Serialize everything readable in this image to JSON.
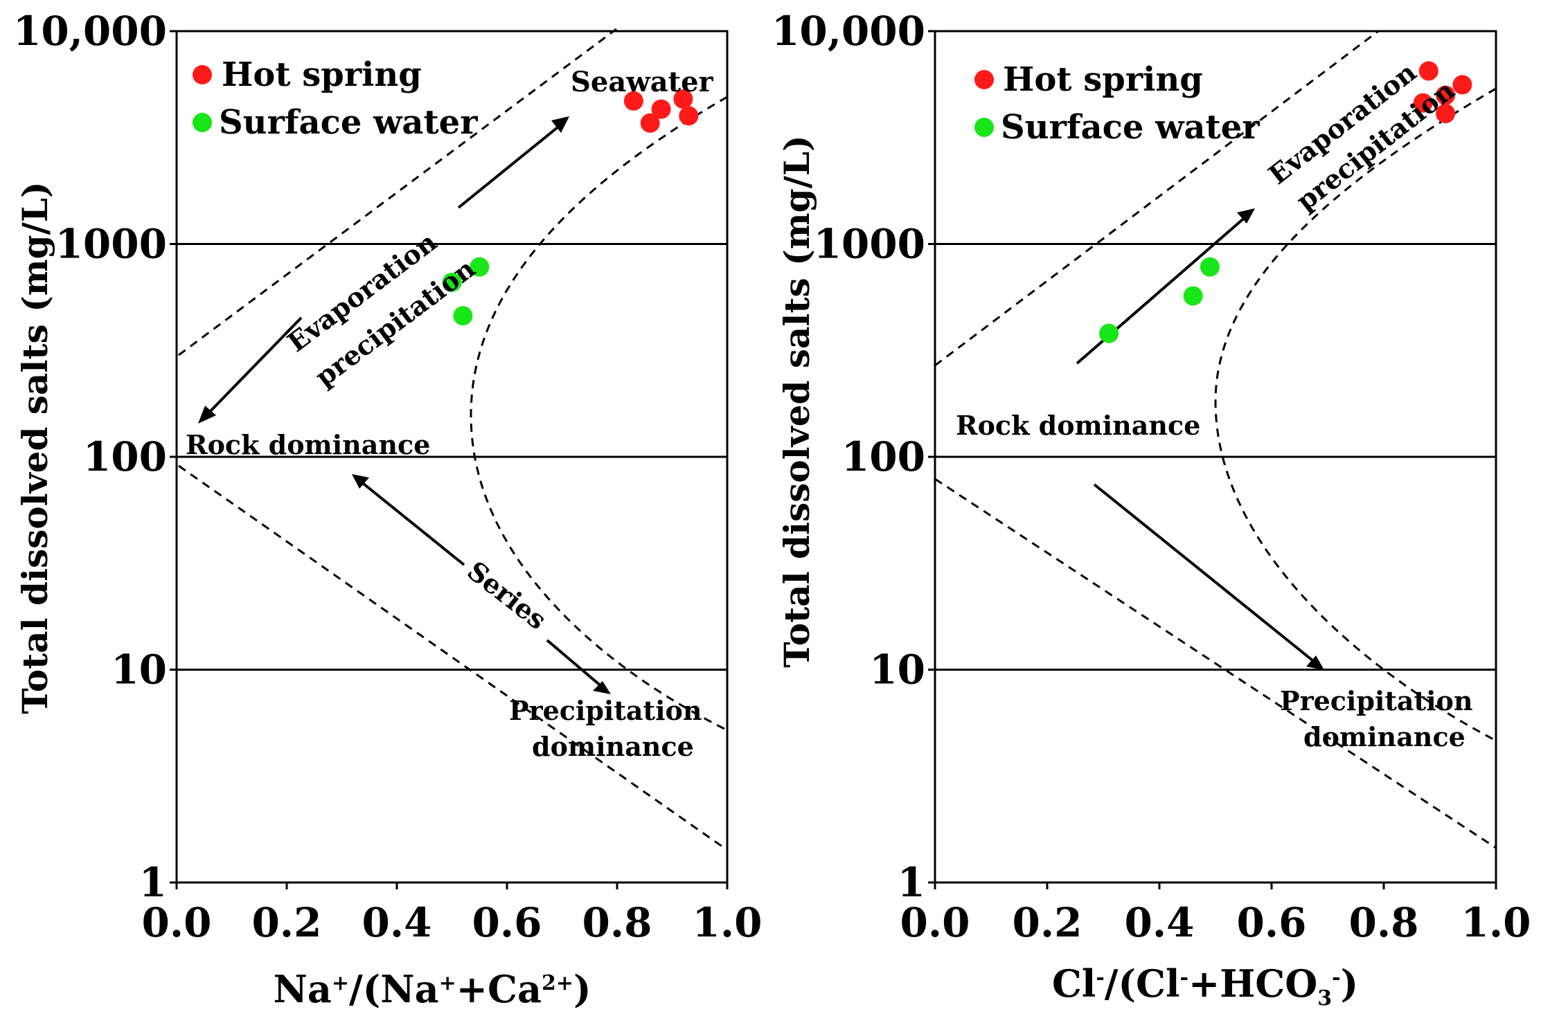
{
  "legend": {
    "hot_spring": "Hot spring",
    "surface_water": "Surface water"
  },
  "colors": {
    "hot_spring": "#ff1a1a",
    "surface_water": "#19e619"
  },
  "chart_data": [
    {
      "type": "scatter",
      "xlabel": "Na⁺/(Na⁺+Ca²⁺)",
      "ylabel": "Total dissolved salts (mg/L)",
      "xlim": [
        0,
        1
      ],
      "ylim": [
        1,
        10000
      ],
      "yscale": "log",
      "x_ticks": [
        "0.0",
        "0.2",
        "0.4",
        "0.6",
        "0.8",
        "1.0"
      ],
      "y_ticks": [
        "1",
        "10",
        "100",
        "1000",
        "10,000"
      ],
      "horizontal_lines": [
        10,
        100,
        1000
      ],
      "legend_position": "top-left",
      "annotations": {
        "seawater": "Seawater",
        "evaporation": "Evaporation",
        "precipitation": "precipitation",
        "rock": "Rock  dominance",
        "series": "Series",
        "precip_dom_1": "Precipitation",
        "precip_dom_2": "dominance"
      },
      "series": [
        {
          "name": "Hot spring",
          "points": [
            {
              "x": 0.83,
              "y": 4700
            },
            {
              "x": 0.86,
              "y": 3700
            },
            {
              "x": 0.88,
              "y": 4300
            },
            {
              "x": 0.92,
              "y": 4800
            },
            {
              "x": 0.93,
              "y": 4000
            }
          ]
        },
        {
          "name": "Surface water",
          "points": [
            {
              "x": 0.5,
              "y": 660
            },
            {
              "x": 0.55,
              "y": 780
            },
            {
              "x": 0.52,
              "y": 460
            }
          ]
        }
      ]
    },
    {
      "type": "scatter",
      "xlabel": "Cl⁻/(Cl⁻+HCO₃⁻)",
      "ylabel": "Total dissolved salts (mg/L)",
      "xlim": [
        0,
        1
      ],
      "ylim": [
        1,
        10000
      ],
      "yscale": "log",
      "x_ticks": [
        "0.0",
        "0.2",
        "0.4",
        "0.6",
        "0.8",
        "1.0"
      ],
      "y_ticks": [
        "1",
        "10",
        "100",
        "1000",
        "10,000"
      ],
      "horizontal_lines": [
        10,
        100,
        1000
      ],
      "legend_position": "top-left",
      "annotations": {
        "evaporation": "Evaporation",
        "precipitation": "precipitation",
        "rock": "Rock  dominance",
        "precip_dom_1": "Precipitation",
        "precip_dom_2": "dominance"
      },
      "series": [
        {
          "name": "Hot spring",
          "points": [
            {
              "x": 0.88,
              "y": 6500
            },
            {
              "x": 0.91,
              "y": 5000
            },
            {
              "x": 0.94,
              "y": 5600
            },
            {
              "x": 0.87,
              "y": 4600
            },
            {
              "x": 0.91,
              "y": 4100
            }
          ]
        },
        {
          "name": "Surface water",
          "points": [
            {
              "x": 0.31,
              "y": 380
            },
            {
              "x": 0.46,
              "y": 570
            },
            {
              "x": 0.49,
              "y": 780
            }
          ]
        }
      ]
    }
  ]
}
